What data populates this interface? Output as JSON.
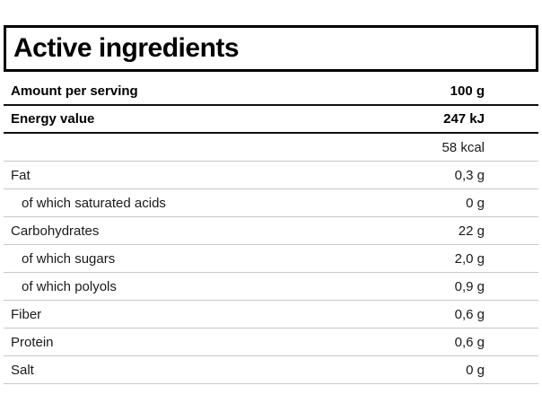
{
  "table": {
    "title": "Active ingredients",
    "rows": [
      {
        "label": "Amount per serving",
        "value": "100 g",
        "bold": true,
        "indent": false,
        "divider": "dark"
      },
      {
        "label": "Energy value",
        "value": "247 kJ",
        "bold": true,
        "indent": false,
        "divider": "dark"
      },
      {
        "label": "",
        "value": "58 kcal",
        "bold": false,
        "indent": false,
        "divider": "light"
      },
      {
        "label": "Fat",
        "value": "0,3 g",
        "bold": false,
        "indent": false,
        "divider": "light"
      },
      {
        "label": "of which saturated acids",
        "value": "0 g",
        "bold": false,
        "indent": true,
        "divider": "light"
      },
      {
        "label": "Carbohydrates",
        "value": "22 g",
        "bold": false,
        "indent": false,
        "divider": "light"
      },
      {
        "label": "of which sugars",
        "value": "2,0 g",
        "bold": false,
        "indent": true,
        "divider": "light"
      },
      {
        "label": "of which polyols",
        "value": "0,9 g",
        "bold": false,
        "indent": true,
        "divider": "light"
      },
      {
        "label": "Fiber",
        "value": "0,6 g",
        "bold": false,
        "indent": false,
        "divider": "light"
      },
      {
        "label": "Protein",
        "value": "0,6 g",
        "bold": false,
        "indent": false,
        "divider": "light"
      },
      {
        "label": "Salt",
        "value": "0 g",
        "bold": false,
        "indent": false,
        "divider": "light"
      }
    ]
  }
}
